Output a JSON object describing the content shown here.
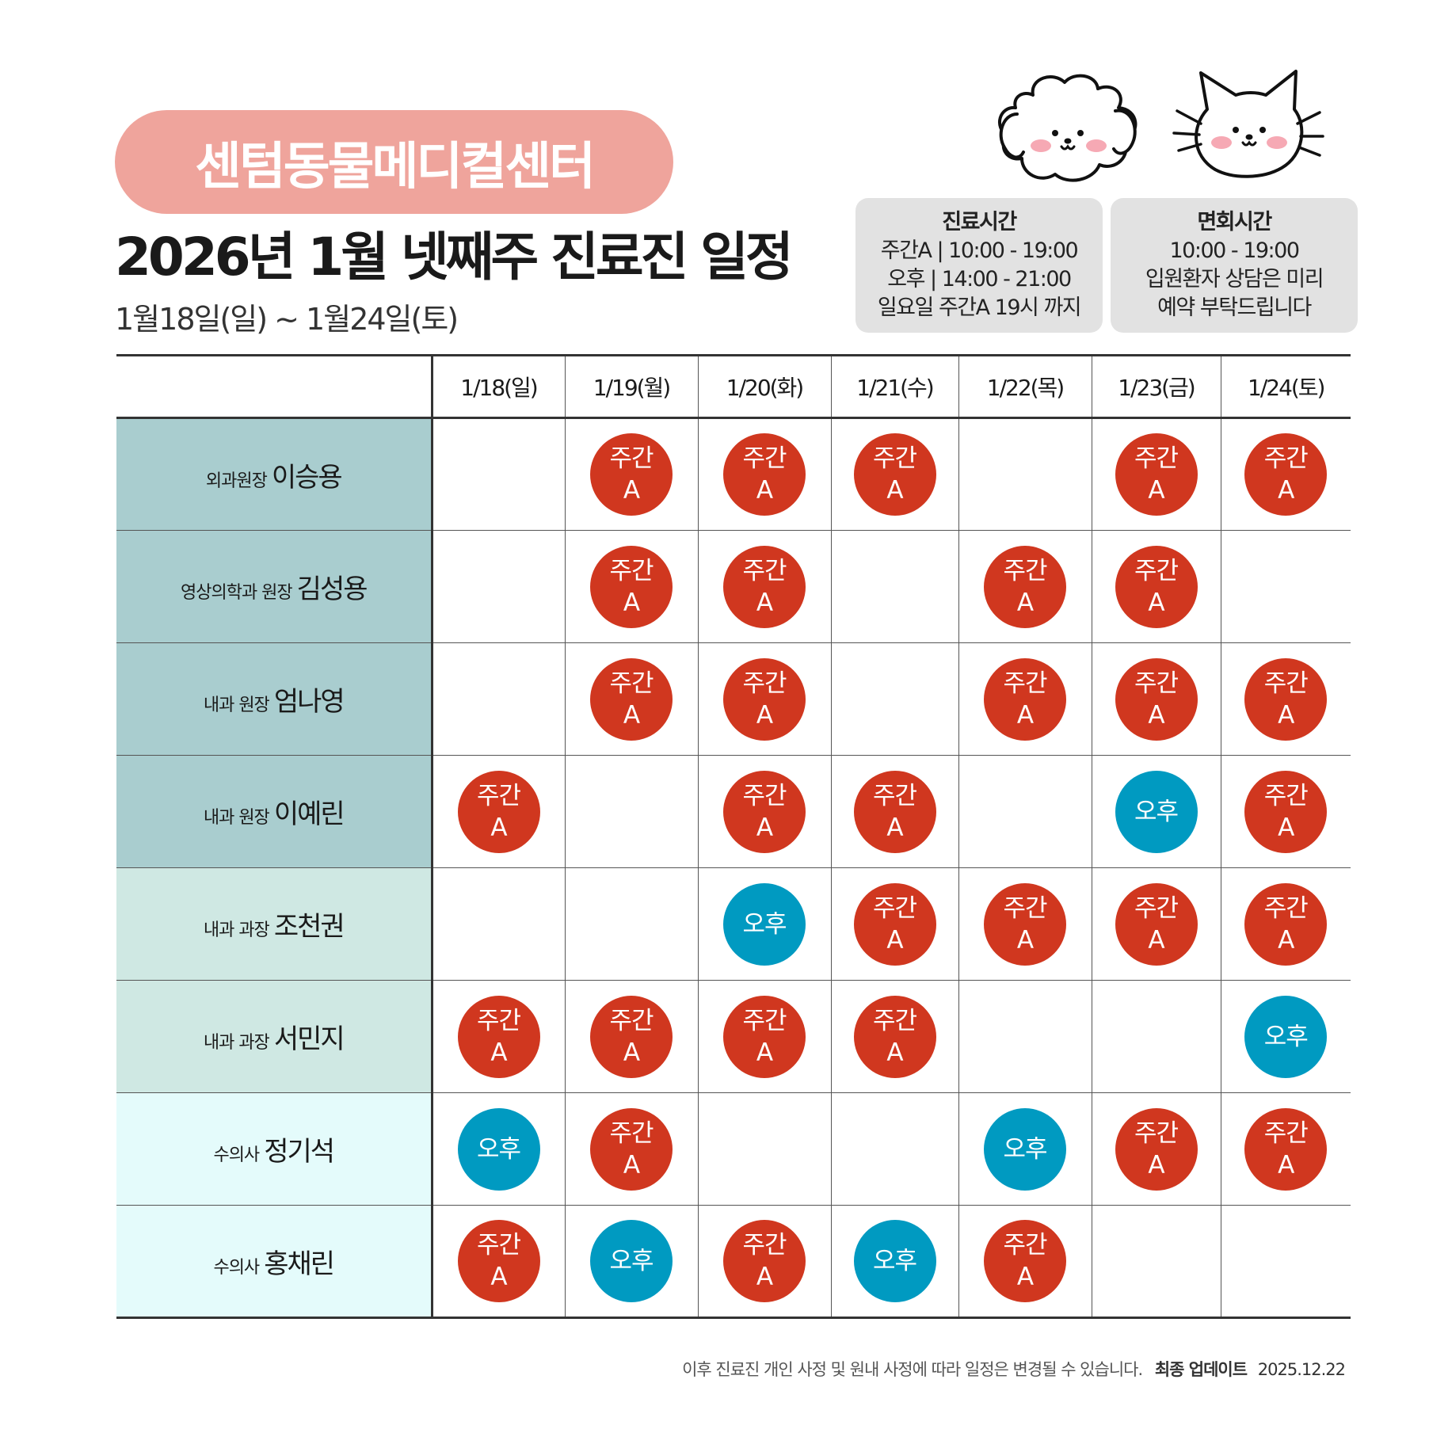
{
  "hospital_name": "센텀동물메디컬센터",
  "title": "2026년 1월 넷째주 진료진 일정",
  "date_range": "1월18일(일) ~ 1월24일(토)",
  "info_hours": {
    "heading": "진료시간",
    "lines": [
      "주간A | 10:00 - 19:00",
      "오후 | 14:00 - 21:00",
      "일요일 주간A 19시 까지"
    ]
  },
  "info_visit": {
    "heading": "면회시간",
    "lines": [
      "10:00 - 19:00",
      "입원환자 상담은 미리",
      "예약 부탁드립니다"
    ]
  },
  "days": [
    "1/18(일)",
    "1/19(월)",
    "1/20(화)",
    "1/21(수)",
    "1/22(목)",
    "1/23(금)",
    "1/24(토)"
  ],
  "shift_labels": {
    "A": "주간\nA",
    "P": "오후"
  },
  "shift_colors": {
    "A": "#d0371f",
    "P": "#009ac1"
  },
  "row_colors": [
    "#a9cdcf",
    "#cfe8e3",
    "#e4fbfb"
  ],
  "doctors": [
    {
      "role": "외과원장",
      "name": "이승용",
      "group": 1,
      "shifts": [
        "",
        "A",
        "A",
        "A",
        "",
        "A",
        "A"
      ]
    },
    {
      "role": "영상의학과 원장",
      "name": "김성용",
      "group": 1,
      "shifts": [
        "",
        "A",
        "A",
        "",
        "A",
        "A",
        ""
      ]
    },
    {
      "role": "내과 원장",
      "name": "엄나영",
      "group": 1,
      "shifts": [
        "",
        "A",
        "A",
        "",
        "A",
        "A",
        "A"
      ]
    },
    {
      "role": "내과 원장",
      "name": "이예린",
      "group": 1,
      "shifts": [
        "A",
        "",
        "A",
        "A",
        "",
        "P",
        "A"
      ]
    },
    {
      "role": "내과 과장",
      "name": "조천권",
      "group": 2,
      "shifts": [
        "",
        "",
        "P",
        "A",
        "A",
        "A",
        "A"
      ]
    },
    {
      "role": "내과 과장",
      "name": "서민지",
      "group": 2,
      "shifts": [
        "A",
        "A",
        "A",
        "A",
        "",
        "",
        "P"
      ]
    },
    {
      "role": "수의사",
      "name": "정기석",
      "group": 3,
      "shifts": [
        "P",
        "A",
        "",
        "",
        "P",
        "A",
        "A"
      ]
    },
    {
      "role": "수의사",
      "name": "홍채린",
      "group": 3,
      "shifts": [
        "A",
        "P",
        "A",
        "P",
        "A",
        "",
        ""
      ]
    }
  ],
  "footer": {
    "notice": "이후 진료진 개인 사정 및 원내 사정에 따라 일정은 변경될 수 있습니다.",
    "update_label": "최종 업데이트",
    "update_date": "2025.12.22"
  }
}
